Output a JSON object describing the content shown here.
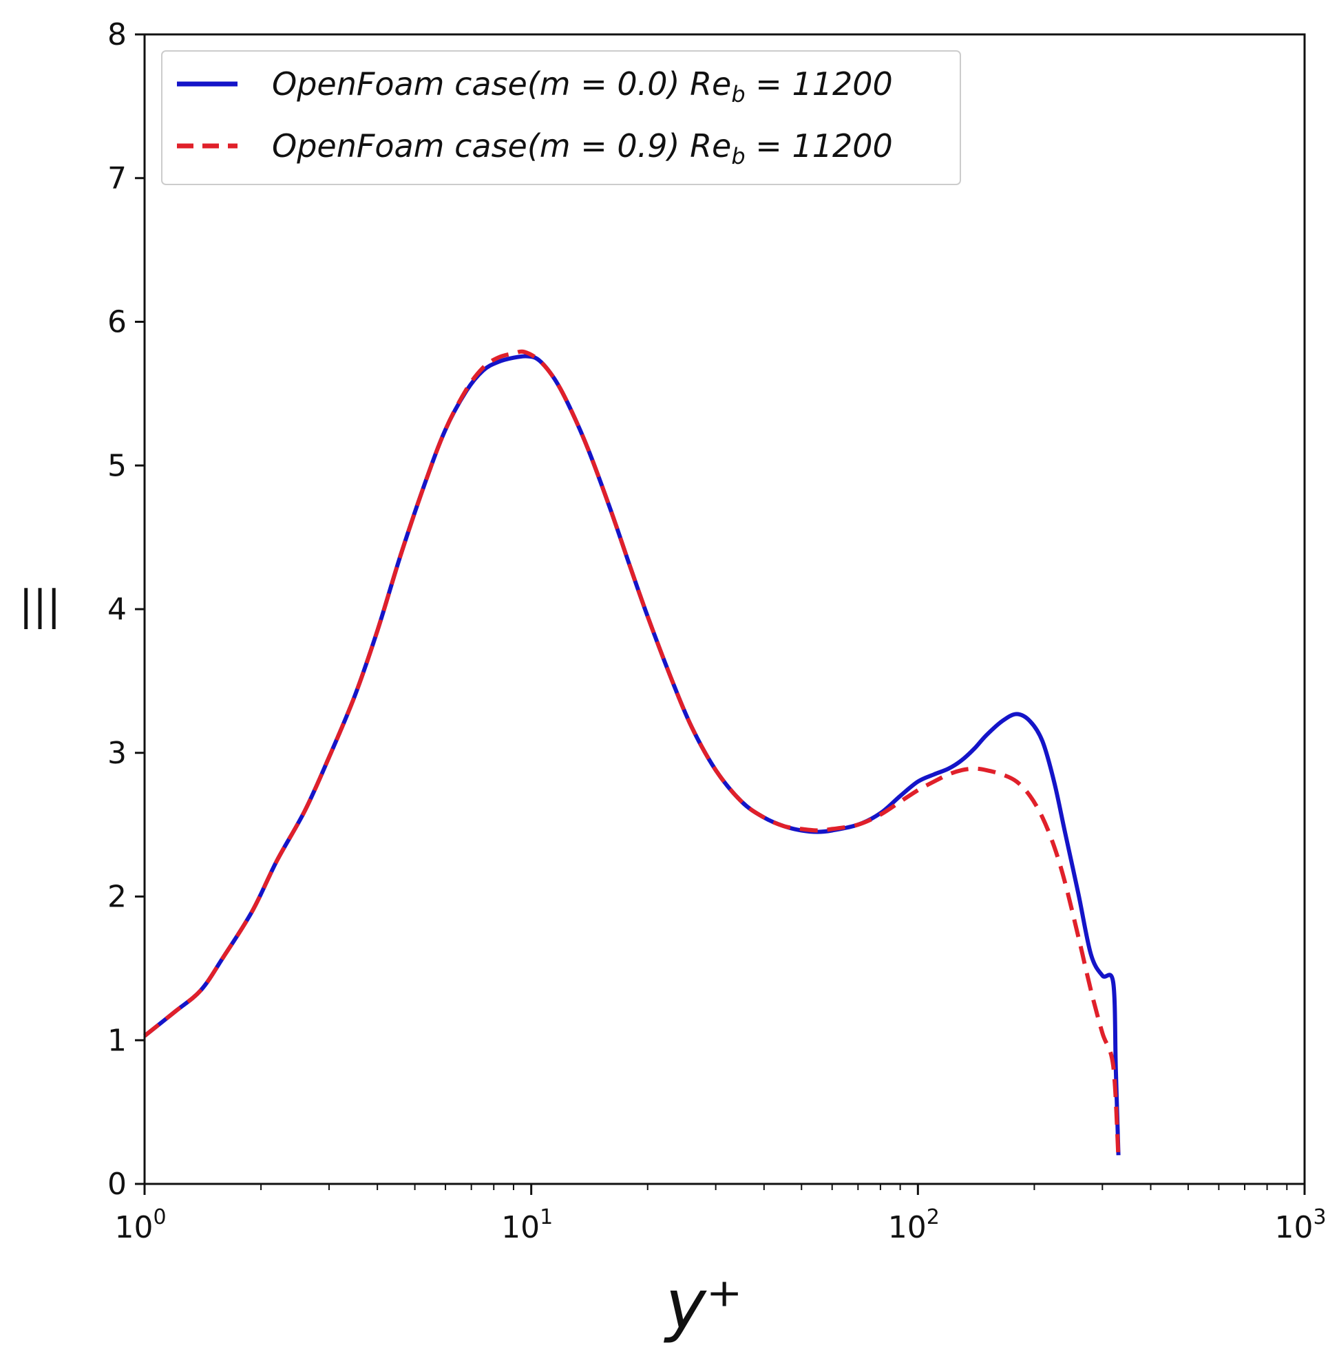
{
  "chart_data": {
    "type": "line",
    "xlabel": "y⁺",
    "ylabel": "|||",
    "xscale": "log",
    "xlim": [
      1,
      1000
    ],
    "ylim": [
      0,
      8
    ],
    "x_ticks": [
      {
        "base": "10",
        "exp": "0",
        "value": 1
      },
      {
        "base": "10",
        "exp": "1",
        "value": 10
      },
      {
        "base": "10",
        "exp": "2",
        "value": 100
      },
      {
        "base": "10",
        "exp": "3",
        "value": 1000
      }
    ],
    "y_ticks": [
      "0",
      "1",
      "2",
      "3",
      "4",
      "5",
      "6",
      "7",
      "8"
    ],
    "grid": false,
    "legend_position": "top-left",
    "series": [
      {
        "name": "OpenFoam case(m = 0.0) Re_b = 11200",
        "legend_parts": {
          "prefix": "OpenFoam case(m = 0.0) Re",
          "sub": "b",
          "suffix": " = 11200"
        },
        "color": "#1414c8",
        "style": "solid",
        "x": [
          1.0,
          1.2,
          1.4,
          1.6,
          1.9,
          2.2,
          2.6,
          3.0,
          3.5,
          4.0,
          4.6,
          5.3,
          6.0,
          6.8,
          7.5,
          8.2,
          9.0,
          9.8,
          10.5,
          11.5,
          12.5,
          14,
          16,
          18,
          20,
          23,
          26,
          30,
          35,
          40,
          45,
          50,
          55,
          60,
          70,
          80,
          90,
          100,
          110,
          120,
          130,
          140,
          150,
          165,
          180,
          195,
          210,
          225,
          240,
          260,
          280,
          300,
          320,
          325,
          330
        ],
        "y": [
          1.03,
          1.2,
          1.35,
          1.58,
          1.9,
          2.25,
          2.6,
          2.97,
          3.4,
          3.85,
          4.38,
          4.87,
          5.25,
          5.52,
          5.66,
          5.72,
          5.75,
          5.76,
          5.73,
          5.6,
          5.42,
          5.12,
          4.7,
          4.3,
          3.95,
          3.52,
          3.18,
          2.88,
          2.66,
          2.55,
          2.49,
          2.46,
          2.45,
          2.46,
          2.5,
          2.58,
          2.7,
          2.8,
          2.85,
          2.89,
          2.95,
          3.03,
          3.12,
          3.22,
          3.27,
          3.22,
          3.08,
          2.8,
          2.45,
          2.02,
          1.6,
          1.45,
          1.4,
          0.8,
          0.2
        ]
      },
      {
        "name": "OpenFoam case(m = 0.9) Re_b = 11200",
        "legend_parts": {
          "prefix": "OpenFoam case(m = 0.9) Re",
          "sub": "b",
          "suffix": " = 11200"
        },
        "color": "#e0202a",
        "style": "dashed",
        "x": [
          1.0,
          1.2,
          1.4,
          1.6,
          1.9,
          2.2,
          2.6,
          3.0,
          3.5,
          4.0,
          4.6,
          5.3,
          6.0,
          6.8,
          7.5,
          8.2,
          9.0,
          9.6,
          10.5,
          11.5,
          12.5,
          14,
          16,
          18,
          20,
          23,
          26,
          30,
          35,
          40,
          45,
          50,
          55,
          60,
          70,
          80,
          90,
          100,
          110,
          120,
          130,
          140,
          150,
          165,
          180,
          195,
          210,
          225,
          240,
          260,
          280,
          300,
          320,
          330
        ],
        "y": [
          1.03,
          1.2,
          1.35,
          1.58,
          1.9,
          2.25,
          2.6,
          2.97,
          3.4,
          3.85,
          4.38,
          4.87,
          5.25,
          5.53,
          5.68,
          5.75,
          5.78,
          5.79,
          5.73,
          5.6,
          5.42,
          5.12,
          4.7,
          4.3,
          3.95,
          3.52,
          3.18,
          2.88,
          2.66,
          2.55,
          2.49,
          2.47,
          2.46,
          2.47,
          2.5,
          2.57,
          2.66,
          2.74,
          2.8,
          2.85,
          2.88,
          2.89,
          2.88,
          2.85,
          2.8,
          2.7,
          2.55,
          2.35,
          2.1,
          1.72,
          1.35,
          1.05,
          0.82,
          0.18
        ]
      }
    ]
  }
}
